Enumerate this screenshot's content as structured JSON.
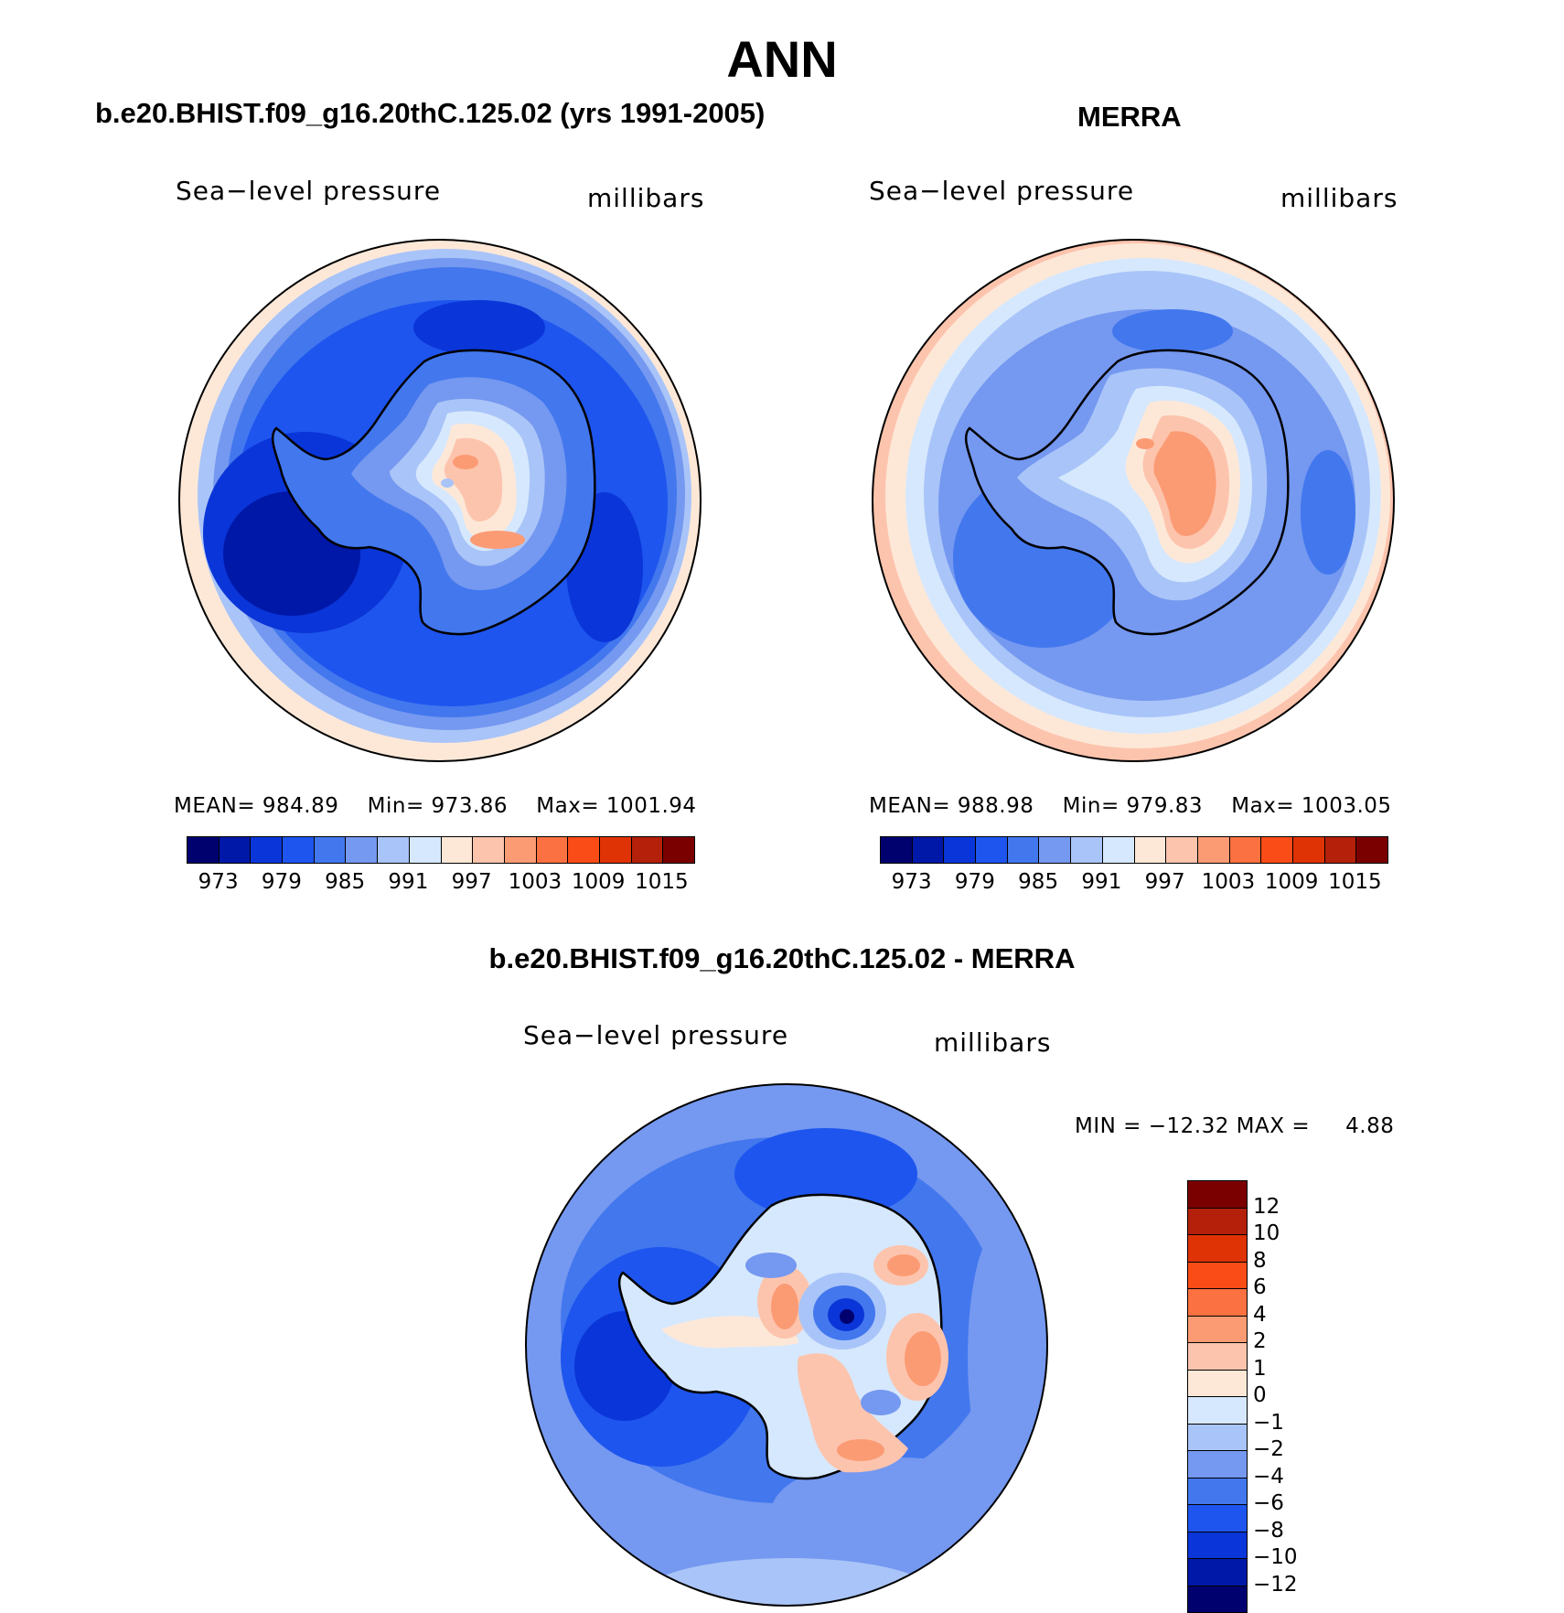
{
  "title": "ANN",
  "panels": {
    "model": {
      "title": "b.e20.BHIST.f09_g16.20thC.125.02 (yrs 1991-2005)",
      "left_label": "Sea−level pressure",
      "right_label": "millibars",
      "mean_label": "MEAN=",
      "mean": "984.89",
      "min_label": "Min=",
      "min": "973.86",
      "max_label": "Max=",
      "max": "1001.94"
    },
    "obs": {
      "title": "MERRA",
      "left_label": "Sea−level pressure",
      "right_label": "millibars",
      "mean_label": "MEAN=",
      "mean": "988.98",
      "min_label": "Min=",
      "min": "979.83",
      "max_label": "Max=",
      "max": "1003.05"
    },
    "diff": {
      "title": "b.e20.BHIST.f09_g16.20thC.125.02 - MERRA",
      "left_label": "Sea−level pressure",
      "right_label": "millibars",
      "min_label": "MIN =",
      "min": "−12.32",
      "max_label": "MAX =",
      "max": "4.88"
    }
  },
  "colorbar_abs": {
    "ticks": [
      "973",
      "979",
      "985",
      "991",
      "997",
      "1003",
      "1009",
      "1015"
    ],
    "colors": [
      "#00006e",
      "#0018a8",
      "#0a35d8",
      "#1e55ee",
      "#4277ee",
      "#7598f0",
      "#a9c4f8",
      "#d6e8fd",
      "#fde8d8",
      "#fdc4ad",
      "#fb9b74",
      "#fb7141",
      "#fa4c17",
      "#df3205",
      "#b4200a",
      "#7a0000"
    ]
  },
  "colorbar_diff": {
    "ticks": [
      "12",
      "10",
      "8",
      "6",
      "4",
      "2",
      "1",
      "0",
      "−1",
      "−2",
      "−4",
      "−6",
      "−8",
      "−10",
      "−12"
    ],
    "colors": [
      "#7a0000",
      "#b4200a",
      "#df3205",
      "#fa4c17",
      "#fb7141",
      "#fb9b74",
      "#fdc4ad",
      "#fde8d8",
      "#d6e8fd",
      "#a9c4f8",
      "#7598f0",
      "#4277ee",
      "#1e55ee",
      "#0a35d8",
      "#0018a8",
      "#00006e"
    ]
  }
}
